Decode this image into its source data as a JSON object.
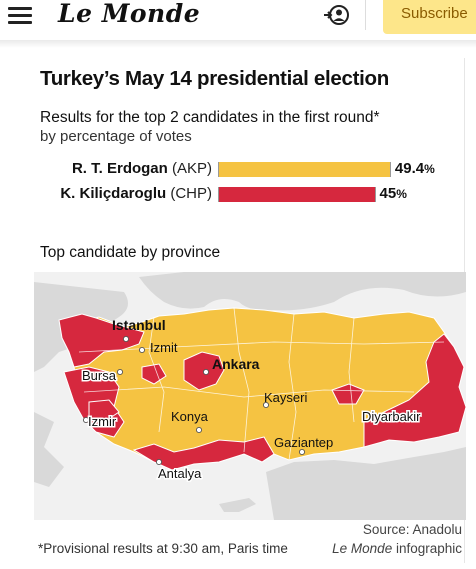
{
  "header": {
    "logo_text": "Le Monde",
    "subscribe_label": "Subscribe",
    "icons": {
      "menu": "hamburger-icon",
      "account": "account-icon"
    }
  },
  "infographic": {
    "title": "Turkey’s May 14 presidential election",
    "subtitle": "Results for the top 2 candidates in the first round*",
    "subtitle2": "by percentage of votes",
    "section_title": "Top candidate by province",
    "footnote": "*Provisional results at 9:30 am, Paris time",
    "source": "Source: Anadolu",
    "credit_italic": "Le Monde",
    "credit_rest": " infographic"
  },
  "chart_data": [
    {
      "type": "bar",
      "orientation": "horizontal",
      "categories": [
        {
          "name": "R. T. Erdogan",
          "party": "(AKP)"
        },
        {
          "name": "K. Kiliçdaroglu",
          "party": "(CHP)"
        }
      ],
      "values": [
        49.4,
        45
      ],
      "value_labels": [
        "49.4",
        "45"
      ],
      "unit": "%",
      "colors": [
        "#f5c342",
        "#d6283e"
      ],
      "xlim": [
        0,
        50
      ]
    },
    {
      "type": "map",
      "legend": "",
      "colors": {
        "AKP": "#f5c342",
        "CHP": "#d6283e",
        "sea": "#f1f1f1",
        "land_other": "#d9d9d9"
      },
      "cities": [
        "Istanbul",
        "Izmit",
        "Ankara",
        "Bursa",
        "Kayseri",
        "Izmir",
        "Konya",
        "Diyarbakir",
        "Gaziantep",
        "Antalya"
      ]
    }
  ]
}
